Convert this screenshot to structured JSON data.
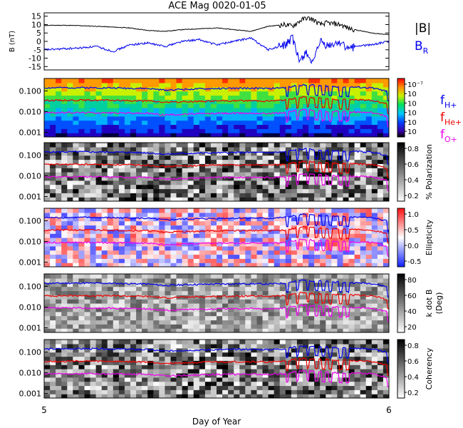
{
  "chart_data": {
    "type": "line",
    "title": "ACE Mag 0020-01-05",
    "xlabel": "Day of Year",
    "x_ticks": [
      "5",
      "6"
    ],
    "xlim": [
      5,
      6
    ],
    "panels": [
      {
        "id": "mag",
        "type": "line",
        "ylabel": "B (nT)",
        "ylim": [
          -17,
          17
        ],
        "y_ticks": [
          15,
          10,
          5,
          0,
          -5,
          -10,
          -15
        ],
        "series": [
          {
            "name": "|B|",
            "color": "#000000",
            "x": [
              5.0,
              5.05,
              5.1,
              5.15,
              5.2,
              5.25,
              5.3,
              5.35,
              5.4,
              5.45,
              5.5,
              5.55,
              5.6,
              5.65,
              5.7,
              5.72,
              5.74,
              5.76,
              5.78,
              5.8,
              5.82,
              5.84,
              5.86,
              5.88,
              5.9,
              5.95,
              6.0
            ],
            "y": [
              9.5,
              9.6,
              9.4,
              9.0,
              8.5,
              8.0,
              6.5,
              6.0,
              7.0,
              7.5,
              8.0,
              7.0,
              6.0,
              9.0,
              10.0,
              9.0,
              12.0,
              14.0,
              13.0,
              10.0,
              11.0,
              10.5,
              10.0,
              8.0,
              7.0,
              5.0,
              4.0
            ]
          },
          {
            "name": "B_R",
            "color": "#0000ee",
            "x": [
              5.0,
              5.05,
              5.1,
              5.15,
              5.2,
              5.25,
              5.3,
              5.35,
              5.4,
              5.45,
              5.5,
              5.55,
              5.6,
              5.65,
              5.7,
              5.72,
              5.74,
              5.76,
              5.78,
              5.8,
              5.82,
              5.84,
              5.86,
              5.88,
              5.9,
              5.95,
              6.0
            ],
            "y": [
              -5.0,
              -4.5,
              -4.0,
              -3.0,
              -6.0,
              -2.0,
              -1.0,
              -3.0,
              0.0,
              1.0,
              -2.0,
              0.0,
              2.0,
              -5.0,
              -2.0,
              2.0,
              -12.0,
              -6.0,
              -14.0,
              0.0,
              -3.0,
              -2.0,
              0.0,
              -5.0,
              -3.0,
              -2.0,
              0.0
            ]
          }
        ]
      },
      {
        "id": "spectrum",
        "type": "heatmap",
        "zlabel": "",
        "ylabel": "",
        "ylim": [
          0.0006,
          0.4
        ],
        "yscale": "log",
        "y_ticks": [
          "0.100",
          "0.010",
          "0.001"
        ],
        "colorbar_ticks": [
          "10⁻⁷",
          "10",
          "10",
          "10",
          "10",
          "10"
        ]
      },
      {
        "id": "polarization",
        "type": "heatmap",
        "zlabel": "% Polarization",
        "ylabel": "",
        "ylim": [
          0.0006,
          0.4
        ],
        "yscale": "log",
        "y_ticks": [
          "0.100",
          "0.010",
          "0.001"
        ],
        "colorbar_ticks": [
          "0.8",
          "0.6",
          "0.4",
          "0.2"
        ]
      },
      {
        "id": "ellipticity",
        "type": "heatmap",
        "zlabel": "Ellipticity",
        "ylabel": "",
        "ylim": [
          0.0006,
          0.4
        ],
        "yscale": "log",
        "y_ticks": [
          "0.100",
          "0.010",
          "0.001"
        ],
        "colorbar_ticks": [
          "1.0",
          "0.5",
          "0.0",
          "-0.5"
        ]
      },
      {
        "id": "kdotb",
        "type": "heatmap",
        "zlabel": "k dot B",
        "zlabel_unit": "(Deg)",
        "ylabel": "",
        "ylim": [
          0.0006,
          0.4
        ],
        "yscale": "log",
        "y_ticks": [
          "0.100",
          "0.010",
          "0.001"
        ],
        "colorbar_ticks": [
          "80",
          "60",
          "40",
          "20"
        ]
      },
      {
        "id": "coherency",
        "type": "heatmap",
        "zlabel": "Coherency",
        "ylabel": "",
        "ylim": [
          0.0006,
          0.4
        ],
        "yscale": "log",
        "y_ticks": [
          "0.100",
          "0.010",
          "0.001"
        ],
        "colorbar_ticks": [
          "0.8",
          "0.6",
          "0.4",
          "0.2"
        ]
      }
    ],
    "gyro_lines": [
      {
        "name": "f_H+",
        "color": "#0000ee",
        "x": [
          5.0,
          5.1,
          5.2,
          5.3,
          5.35,
          5.4,
          5.5,
          5.6,
          5.65,
          5.7,
          5.75,
          5.8,
          5.85,
          5.9,
          5.95,
          6.0
        ],
        "y": [
          0.14,
          0.145,
          0.14,
          0.13,
          0.11,
          0.12,
          0.13,
          0.135,
          0.13,
          0.145,
          0.2,
          0.18,
          0.16,
          0.15,
          0.14,
          0.09
        ]
      },
      {
        "name": "f_He+",
        "color": "#ee0000",
        "x": [
          5.0,
          5.1,
          5.2,
          5.3,
          5.35,
          5.4,
          5.5,
          5.6,
          5.65,
          5.7,
          5.75,
          5.8,
          5.85,
          5.9,
          5.95,
          6.0
        ],
        "y": [
          0.035,
          0.036,
          0.035,
          0.033,
          0.028,
          0.03,
          0.033,
          0.034,
          0.033,
          0.036,
          0.05,
          0.045,
          0.04,
          0.038,
          0.035,
          0.022
        ]
      },
      {
        "name": "f_O+",
        "color": "#ee00ee",
        "x": [
          5.0,
          5.1,
          5.2,
          5.3,
          5.35,
          5.4,
          5.5,
          5.6,
          5.65,
          5.7,
          5.75,
          5.8,
          5.85,
          5.9,
          5.95,
          6.0
        ],
        "y": [
          0.009,
          0.009,
          0.0088,
          0.0083,
          0.007,
          0.0075,
          0.0083,
          0.0085,
          0.0083,
          0.009,
          0.0125,
          0.011,
          0.01,
          0.0095,
          0.009,
          0.0055
        ]
      }
    ],
    "gyro_dips": [
      5.705,
      5.735,
      5.765,
      5.79,
      5.81,
      5.83,
      5.86,
      5.88,
      6.0
    ],
    "legend": {
      "mag": [
        "|B|",
        "B_R"
      ],
      "gyro": [
        {
          "base": "f",
          "sub": "H+",
          "color": "#0000ee"
        },
        {
          "base": "f",
          "sub": "He+",
          "color": "#ee0000"
        },
        {
          "base": "f",
          "sub": "O+",
          "color": "#ee00ee"
        }
      ]
    }
  }
}
